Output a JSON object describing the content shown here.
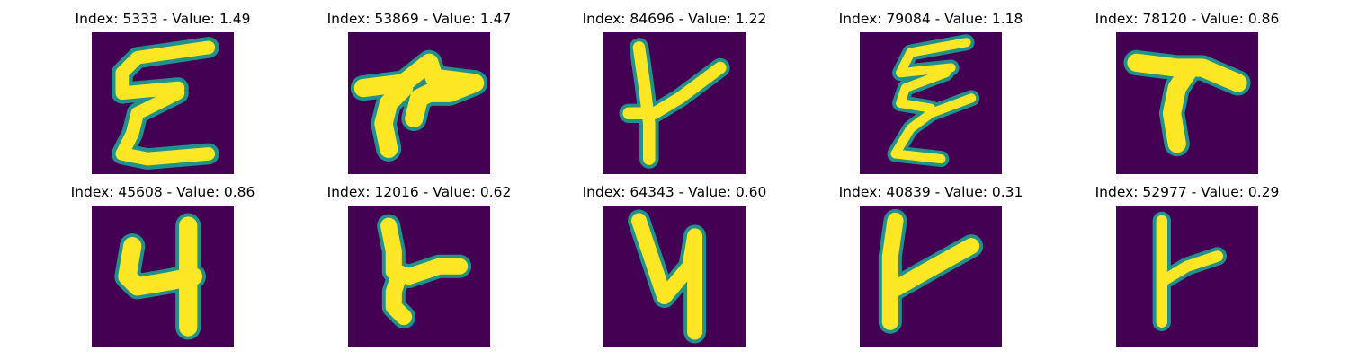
{
  "colors": {
    "background": "#440154",
    "edge": "#21918c",
    "stroke": "#fde725"
  },
  "panels": [
    {
      "title": "Index: 5333 - Value: 1.49",
      "glyph": "glyph-5333"
    },
    {
      "title": "Index: 53869 - Value: 1.47",
      "glyph": "glyph-53869"
    },
    {
      "title": "Index: 84696 - Value: 1.22",
      "glyph": "glyph-84696"
    },
    {
      "title": "Index: 79084 - Value: 1.18",
      "glyph": "glyph-79084"
    },
    {
      "title": "Index: 78120 - Value: 0.86",
      "glyph": "glyph-78120"
    },
    {
      "title": "Index: 45608 - Value: 0.86",
      "glyph": "glyph-45608"
    },
    {
      "title": "Index: 12016 - Value: 0.62",
      "glyph": "glyph-12016"
    },
    {
      "title": "Index: 64343 - Value: 0.60",
      "glyph": "glyph-64343"
    },
    {
      "title": "Index: 40839 - Value: 0.31",
      "glyph": "glyph-40839"
    },
    {
      "title": "Index: 52977 - Value: 0.29",
      "glyph": "glyph-52977"
    }
  ]
}
